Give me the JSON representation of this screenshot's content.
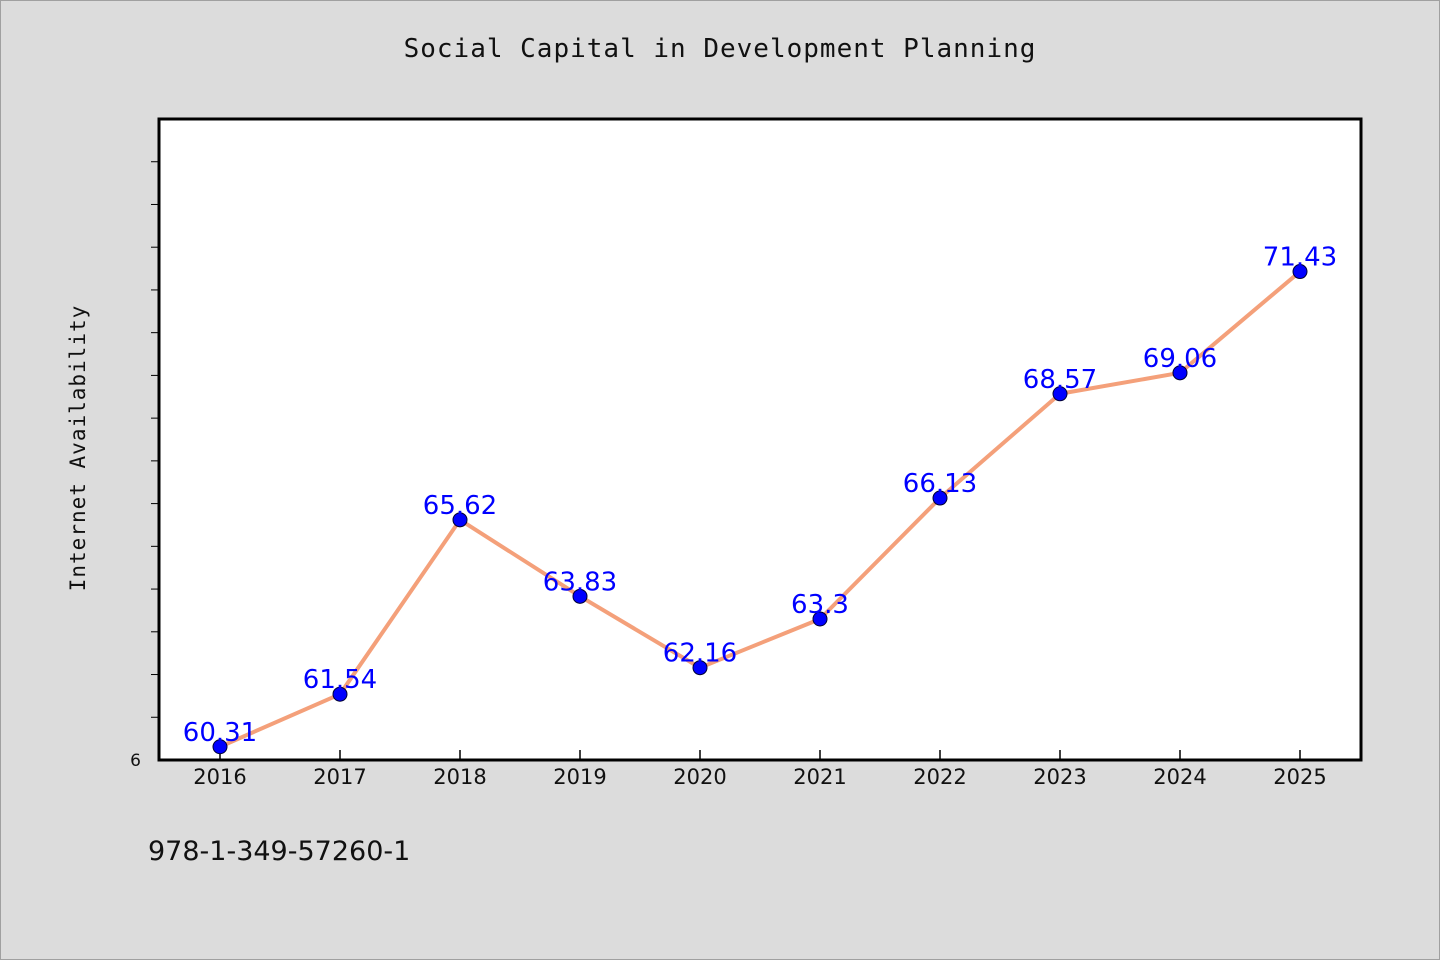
{
  "chart_data": {
    "type": "line",
    "title": "Social Capital in Development Planning",
    "ylabel": "Internet Availability",
    "xlabel": "",
    "x": [
      "2016",
      "2017",
      "2018",
      "2019",
      "2020",
      "2021",
      "2022",
      "2023",
      "2024",
      "2025"
    ],
    "series": [
      {
        "values": [
          60.31,
          61.54,
          65.62,
          63.83,
          62.16,
          63.3,
          66.13,
          68.57,
          69.06,
          71.43
        ],
        "labels": [
          "60.31",
          "61.54",
          "65.62",
          "63.83",
          "62.16",
          "63.3",
          "66.13",
          "68.57",
          "69.06",
          "71.43"
        ],
        "line_color": "#f4a07a",
        "marker_color": "#0000ff"
      }
    ],
    "ylim": [
      60,
      75
    ],
    "y_tick_labels": [
      "6"
    ],
    "grid": false,
    "legend": "none"
  },
  "footer": {
    "code": "978-1-349-57260-1"
  }
}
